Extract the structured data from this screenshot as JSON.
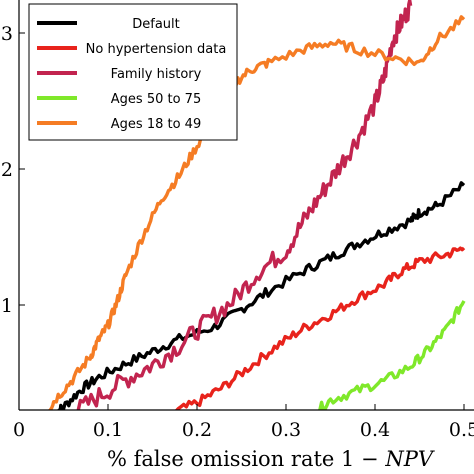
{
  "chart_data": {
    "type": "line",
    "title": "",
    "xlabel_prefix": "% false omission rate 1 −",
    "xlabel_math": "NPV",
    "ylabel": "",
    "xlim": [
      0,
      0.5
    ],
    "ylim": [
      0.2,
      3.2
    ],
    "x_ticks": [
      0,
      0.1,
      0.2,
      0.3,
      0.4,
      0.5
    ],
    "x_tick_labels": [
      "0",
      "0.1",
      "0.2",
      "0.3",
      "0.4",
      "0.5"
    ],
    "y_ticks": [
      1,
      2,
      3
    ],
    "y_tick_labels": [
      "1",
      "2",
      "3"
    ],
    "grid": false,
    "legend_position": "top-left",
    "series": [
      {
        "name": "Default",
        "color": "#000000",
        "points": [
          [
            0.04,
            0.2
          ],
          [
            0.05,
            0.25
          ],
          [
            0.07,
            0.38
          ],
          [
            0.09,
            0.47
          ],
          [
            0.12,
            0.57
          ],
          [
            0.15,
            0.66
          ],
          [
            0.18,
            0.75
          ],
          [
            0.22,
            0.84
          ],
          [
            0.25,
            0.97
          ],
          [
            0.28,
            1.1
          ],
          [
            0.32,
            1.25
          ],
          [
            0.35,
            1.35
          ],
          [
            0.38,
            1.45
          ],
          [
            0.41,
            1.54
          ],
          [
            0.44,
            1.62
          ],
          [
            0.45,
            1.68
          ],
          [
            0.47,
            1.73
          ],
          [
            0.5,
            1.88
          ]
        ]
      },
      {
        "name": "No hypertension data",
        "color": "#e8231c",
        "points": [
          [
            0.17,
            0.2
          ],
          [
            0.2,
            0.28
          ],
          [
            0.23,
            0.4
          ],
          [
            0.26,
            0.55
          ],
          [
            0.29,
            0.7
          ],
          [
            0.32,
            0.83
          ],
          [
            0.35,
            0.93
          ],
          [
            0.38,
            1.05
          ],
          [
            0.41,
            1.15
          ],
          [
            0.43,
            1.25
          ],
          [
            0.45,
            1.32
          ],
          [
            0.48,
            1.37
          ],
          [
            0.5,
            1.42
          ]
        ]
      },
      {
        "name": "Family history",
        "color": "#c2244f",
        "points": [
          [
            0.06,
            0.2
          ],
          [
            0.09,
            0.33
          ],
          [
            0.12,
            0.45
          ],
          [
            0.15,
            0.56
          ],
          [
            0.18,
            0.7
          ],
          [
            0.21,
            0.87
          ],
          [
            0.24,
            1.03
          ],
          [
            0.27,
            1.25
          ],
          [
            0.3,
            1.4
          ],
          [
            0.32,
            1.62
          ],
          [
            0.34,
            1.82
          ],
          [
            0.36,
            2.02
          ],
          [
            0.38,
            2.22
          ],
          [
            0.4,
            2.48
          ],
          [
            0.41,
            2.67
          ],
          [
            0.42,
            2.95
          ],
          [
            0.43,
            3.08
          ],
          [
            0.44,
            3.2
          ]
        ]
      },
      {
        "name": "Ages 50 to 75",
        "color": "#7fe82a",
        "points": [
          [
            0.33,
            0.2
          ],
          [
            0.35,
            0.3
          ],
          [
            0.38,
            0.37
          ],
          [
            0.41,
            0.44
          ],
          [
            0.44,
            0.55
          ],
          [
            0.46,
            0.67
          ],
          [
            0.48,
            0.82
          ],
          [
            0.5,
            1.03
          ]
        ]
      },
      {
        "name": "Ages 18 to 49",
        "color": "#f57c24",
        "points": [
          [
            0.03,
            0.2
          ],
          [
            0.04,
            0.3
          ],
          [
            0.06,
            0.45
          ],
          [
            0.08,
            0.62
          ],
          [
            0.09,
            0.75
          ],
          [
            0.1,
            0.85
          ],
          [
            0.11,
            1.02
          ],
          [
            0.12,
            1.22
          ],
          [
            0.14,
            1.52
          ],
          [
            0.16,
            1.78
          ],
          [
            0.18,
            1.95
          ],
          [
            0.2,
            2.17
          ],
          [
            0.22,
            2.4
          ],
          [
            0.24,
            2.62
          ],
          [
            0.26,
            2.73
          ],
          [
            0.28,
            2.78
          ],
          [
            0.32,
            2.88
          ],
          [
            0.35,
            2.93
          ],
          [
            0.38,
            2.88
          ],
          [
            0.42,
            2.82
          ],
          [
            0.45,
            2.78
          ],
          [
            0.47,
            2.95
          ],
          [
            0.5,
            3.1
          ]
        ]
      }
    ]
  }
}
